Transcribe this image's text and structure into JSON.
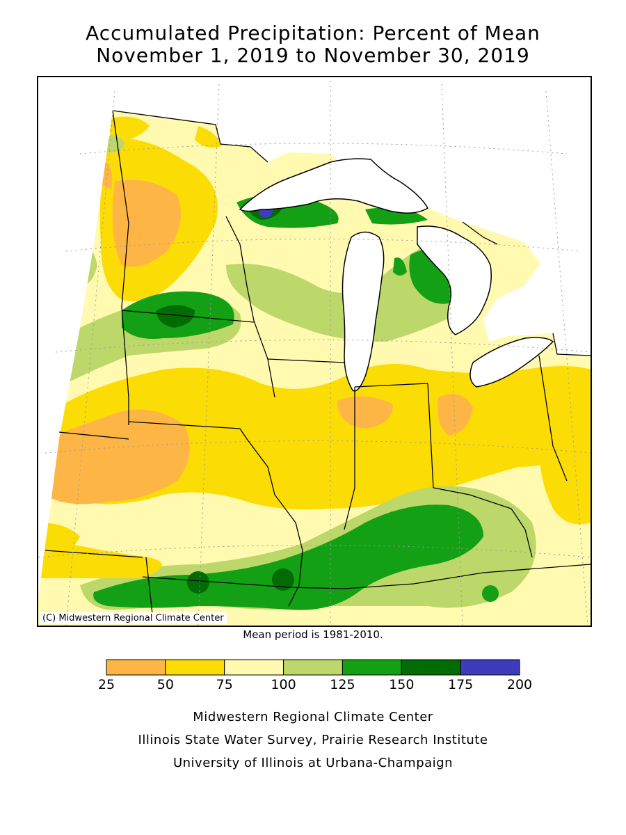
{
  "title_line1": "Accumulated Precipitation: Percent of Mean",
  "title_line2": "November 1, 2019 to November 30, 2019",
  "copyright": "(C) Midwestern Regional Climate Center",
  "mean_period": "Mean period is 1981-2010.",
  "legend": {
    "bins": [
      {
        "from": 25,
        "to": 50,
        "color": "#fdb646"
      },
      {
        "from": 50,
        "to": 75,
        "color": "#fbdc05"
      },
      {
        "from": 75,
        "to": 100,
        "color": "#fffab0"
      },
      {
        "from": 100,
        "to": 125,
        "color": "#bcd86a"
      },
      {
        "from": 125,
        "to": 150,
        "color": "#14a014"
      },
      {
        "from": 150,
        "to": 175,
        "color": "#036b03"
      },
      {
        "from": 175,
        "to": 200,
        "color": "#3c3cbc"
      }
    ],
    "tick_labels": [
      "25",
      "50",
      "75",
      "100",
      "125",
      "150",
      "175",
      "200"
    ]
  },
  "credits": [
    "Midwestern Regional Climate Center",
    "Illinois State Water Survey, Prairie Research Institute",
    "University of Illinois at Urbana-Champaign"
  ]
}
